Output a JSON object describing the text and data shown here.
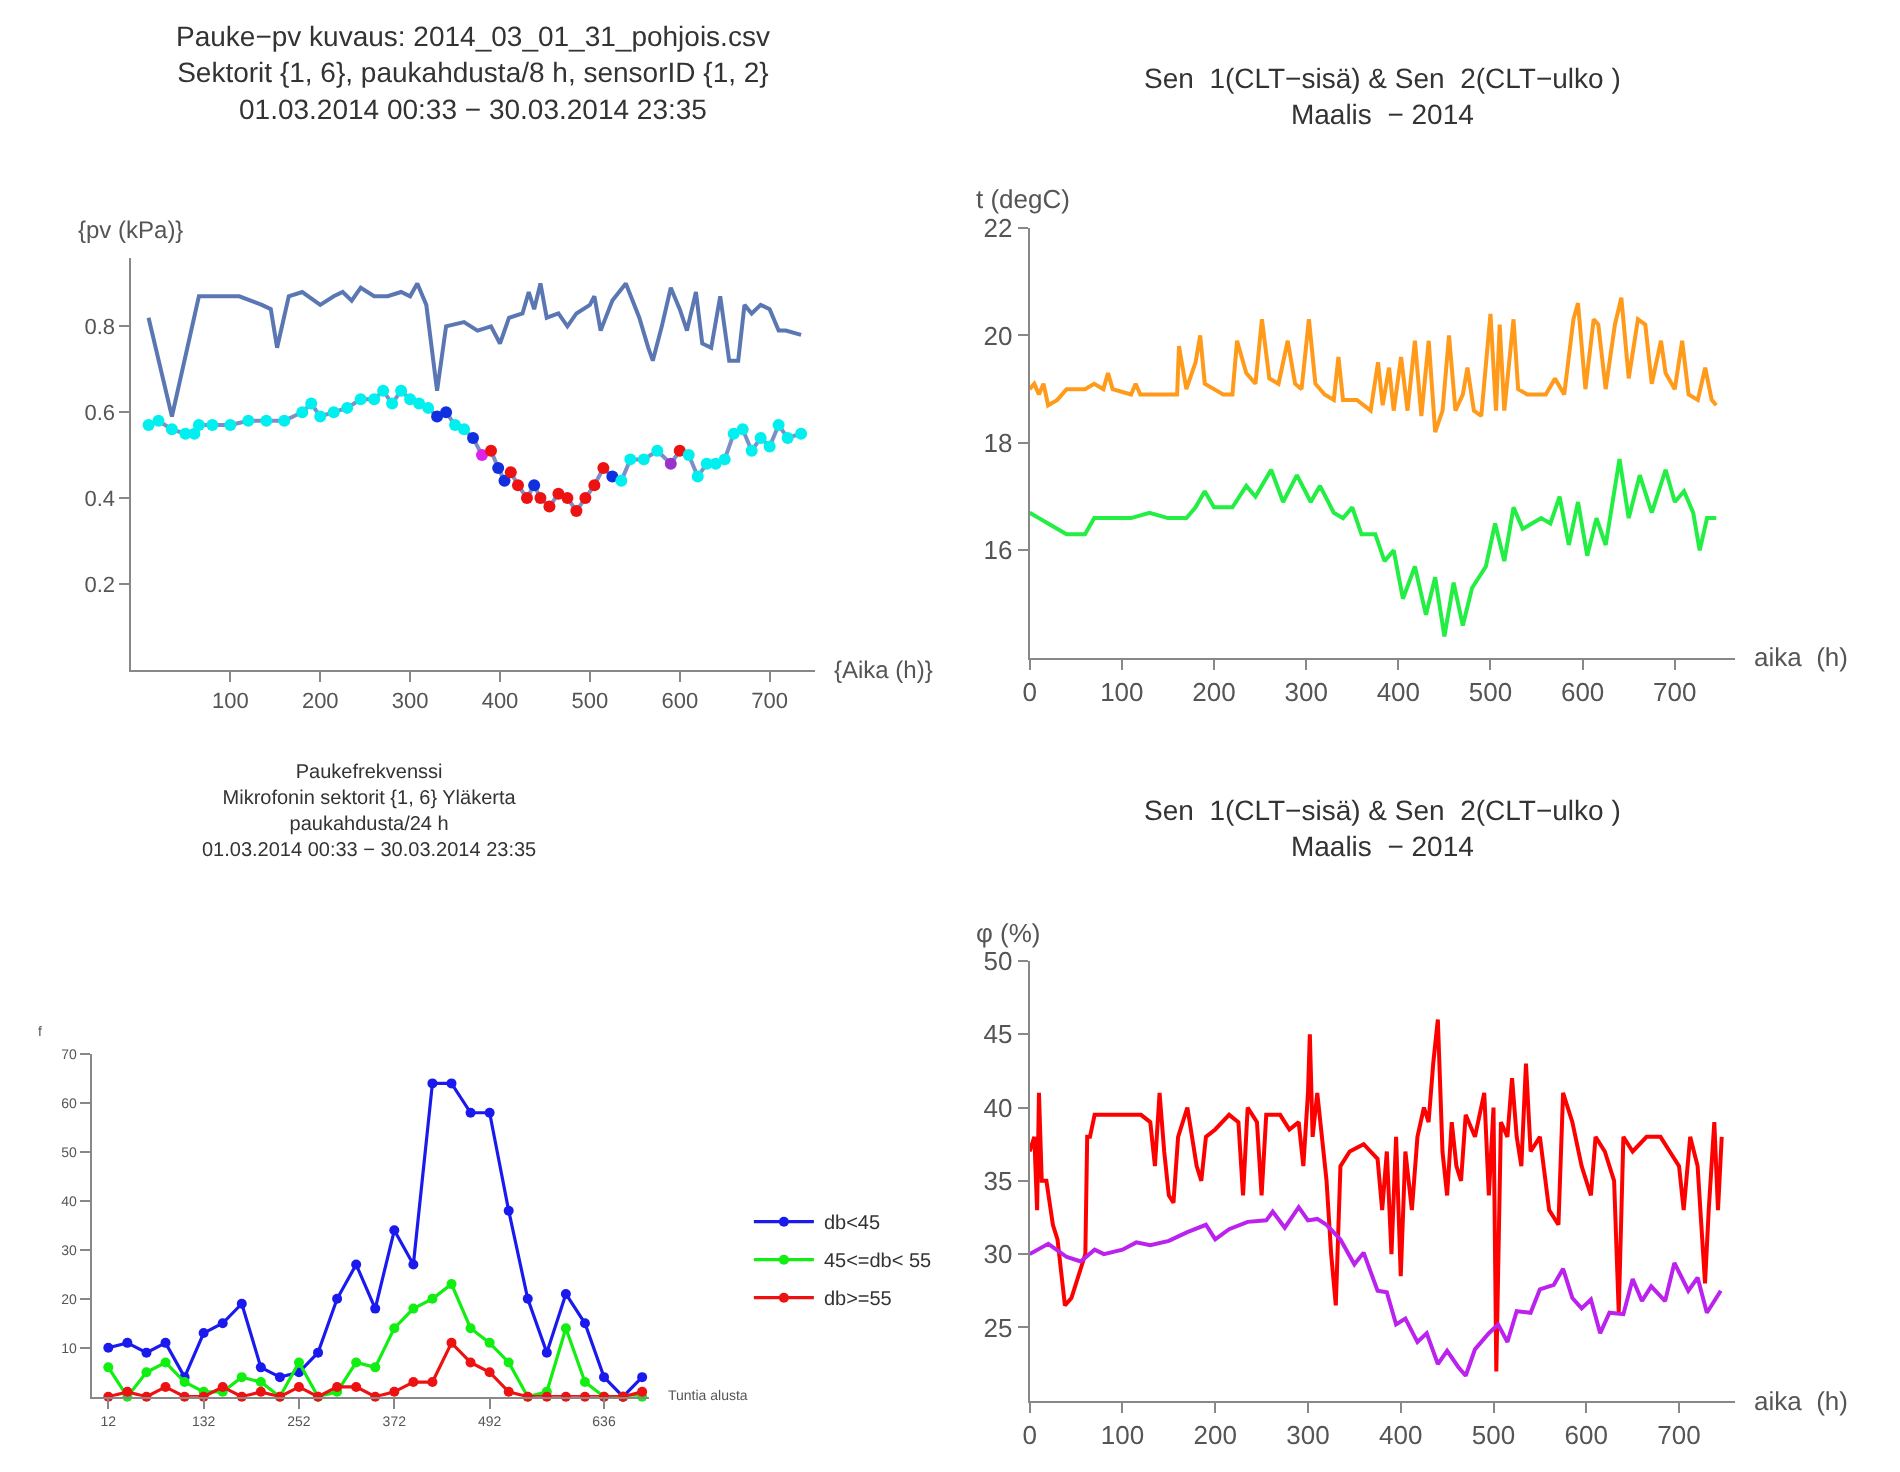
{
  "chart_data": [
    {
      "type": "line",
      "title": "Pauke−pv kuvaus: 2014_03_01_31_pohjois.csv\nSektorit {1, 6}, paukahdusta/8 h, sensorID {1, 2}\n01.03.2014 00:33 − 30.03.2014 23:35",
      "ylabel": "{pv (kPa)}",
      "xlabel": "{Aika (h)}",
      "xlim": [
        -10,
        750
      ],
      "ylim": [
        0,
        0.96
      ],
      "xticks": [
        100,
        200,
        300,
        400,
        500,
        600,
        700
      ],
      "yticks": [
        0.2,
        0.4,
        0.6,
        0.8
      ],
      "tick_labels": true,
      "series": [
        {
          "color": "#5b77b3",
          "marker": "none",
          "x": [
            9,
            35,
            65,
            110,
            135,
            145,
            152,
            165,
            180,
            200,
            215,
            225,
            235,
            245,
            260,
            275,
            290,
            300,
            308,
            318,
            330,
            340,
            360,
            375,
            390,
            400,
            410,
            425,
            432,
            438,
            445,
            452,
            465,
            475,
            485,
            500,
            505,
            512,
            525,
            540,
            555,
            565,
            570,
            580,
            590,
            600,
            608,
            618,
            625,
            635,
            645,
            655,
            665,
            672,
            680,
            690,
            700,
            710,
            718,
            735
          ],
          "values": [
            0.82,
            0.59,
            0.87,
            0.87,
            0.85,
            0.84,
            0.75,
            0.87,
            0.88,
            0.85,
            0.87,
            0.88,
            0.86,
            0.89,
            0.87,
            0.87,
            0.88,
            0.87,
            0.9,
            0.85,
            0.65,
            0.8,
            0.81,
            0.79,
            0.8,
            0.76,
            0.82,
            0.83,
            0.88,
            0.84,
            0.9,
            0.82,
            0.83,
            0.8,
            0.83,
            0.85,
            0.87,
            0.79,
            0.86,
            0.9,
            0.82,
            0.75,
            0.72,
            0.8,
            0.89,
            0.84,
            0.79,
            0.88,
            0.76,
            0.75,
            0.87,
            0.72,
            0.72,
            0.85,
            0.83,
            0.85,
            0.84,
            0.79,
            0.79,
            0.78
          ]
        },
        {
          "color": "#7d8fc4",
          "marker": "circle",
          "x": [
            9,
            20,
            35,
            50,
            60,
            65,
            80,
            100,
            120,
            140,
            160,
            180,
            190,
            200,
            215,
            230,
            245,
            260,
            270,
            280,
            290,
            300,
            310,
            320,
            330,
            340,
            350,
            360,
            370,
            380,
            390,
            398,
            405,
            412,
            420,
            430,
            438,
            445,
            455,
            465,
            475,
            485,
            495,
            505,
            515,
            525,
            535,
            545,
            560,
            575,
            590,
            600,
            610,
            620,
            630,
            640,
            650,
            660,
            670,
            680,
            690,
            700,
            710,
            720,
            735
          ],
          "values": [
            0.57,
            0.58,
            0.56,
            0.55,
            0.55,
            0.57,
            0.57,
            0.57,
            0.58,
            0.58,
            0.58,
            0.6,
            0.62,
            0.59,
            0.6,
            0.61,
            0.63,
            0.63,
            0.65,
            0.62,
            0.65,
            0.63,
            0.62,
            0.61,
            0.59,
            0.6,
            0.57,
            0.56,
            0.54,
            0.5,
            0.51,
            0.47,
            0.44,
            0.46,
            0.43,
            0.4,
            0.43,
            0.4,
            0.38,
            0.41,
            0.4,
            0.37,
            0.4,
            0.43,
            0.47,
            0.45,
            0.44,
            0.49,
            0.49,
            0.51,
            0.48,
            0.51,
            0.5,
            0.45,
            0.48,
            0.48,
            0.49,
            0.55,
            0.56,
            0.51,
            0.54,
            0.52,
            0.57,
            0.54,
            0.55
          ],
          "colors": [
            "#00f0f0",
            "#00f0f0",
            "#00f0f0",
            "#00f0f0",
            "#00f0f0",
            "#00f0f0",
            "#00f0f0",
            "#00f0f0",
            "#00f0f0",
            "#00f0f0",
            "#00f0f0",
            "#00f0f0",
            "#00f0f0",
            "#00f0f0",
            "#00f0f0",
            "#00f0f0",
            "#00f0f0",
            "#00f0f0",
            "#00f0f0",
            "#00f0f0",
            "#00f0f0",
            "#00f0f0",
            "#00f0f0",
            "#00f0f0",
            "#1030e0",
            "#1030e0",
            "#00f0f0",
            "#00f0f0",
            "#1030e0",
            "#dd22ee",
            "#ee1111",
            "#1030e0",
            "#1030e0",
            "#ee1111",
            "#ee1111",
            "#ee1111",
            "#1030e0",
            "#ee1111",
            "#ee1111",
            "#ee1111",
            "#ee1111",
            "#ee1111",
            "#ee1111",
            "#ee1111",
            "#ee1111",
            "#1030e0",
            "#00f0f0",
            "#00f0f0",
            "#00f0f0",
            "#00f0f0",
            "#9933cc",
            "#ee1111",
            "#00f0f0",
            "#00f0f0",
            "#00f0f0",
            "#00f0f0",
            "#00f0f0",
            "#00f0f0",
            "#00f0f0",
            "#00f0f0",
            "#00f0f0",
            "#00f0f0",
            "#00f0f0",
            "#00f0f0",
            "#00f0f0"
          ]
        }
      ]
    },
    {
      "type": "line",
      "title": "Sen  1(CLT−sisä) & Sen  2(CLT−ulko )\nMaalis  − 2014",
      "ylabel": "t (degC)",
      "xlabel": "aika  (h)",
      "xlim": [
        0,
        765
      ],
      "ylim": [
        14,
        22
      ],
      "xticks": [
        0,
        100,
        200,
        300,
        400,
        500,
        600,
        700
      ],
      "yticks": [
        16,
        18,
        20,
        22
      ],
      "series": [
        {
          "color": "#ff9a1a",
          "marker": "none",
          "x": [
            0,
            5,
            10,
            15,
            20,
            30,
            40,
            60,
            70,
            80,
            85,
            90,
            110,
            115,
            120,
            150,
            160,
            162,
            170,
            180,
            185,
            190,
            200,
            210,
            220,
            225,
            235,
            245,
            252,
            260,
            270,
            280,
            288,
            295,
            303,
            310,
            320,
            330,
            335,
            340,
            355,
            370,
            378,
            383,
            390,
            395,
            403,
            410,
            418,
            425,
            433,
            440,
            448,
            455,
            462,
            470,
            475,
            482,
            490,
            500,
            506,
            510,
            515,
            525,
            530,
            540,
            550,
            560,
            570,
            580,
            590,
            595,
            603,
            612,
            617,
            625,
            635,
            642,
            650,
            660,
            668,
            675,
            685,
            690,
            700,
            708,
            715,
            725,
            733,
            740,
            745
          ],
          "values": [
            19.0,
            19.1,
            18.9,
            19.1,
            18.7,
            18.8,
            19.0,
            19.0,
            19.1,
            19.0,
            19.3,
            19.0,
            18.9,
            19.1,
            18.9,
            18.9,
            18.9,
            19.8,
            19.0,
            19.5,
            20.0,
            19.1,
            19.0,
            18.9,
            18.9,
            19.9,
            19.3,
            19.1,
            20.3,
            19.2,
            19.1,
            19.9,
            19.1,
            19.0,
            20.3,
            19.1,
            18.9,
            18.8,
            19.6,
            18.8,
            18.8,
            18.6,
            19.5,
            18.7,
            19.4,
            18.6,
            19.6,
            18.6,
            19.9,
            18.5,
            19.9,
            18.2,
            18.6,
            20.0,
            18.6,
            18.9,
            19.4,
            18.6,
            18.5,
            20.4,
            18.6,
            20.2,
            18.6,
            20.3,
            19.0,
            18.9,
            18.9,
            18.9,
            19.2,
            18.9,
            20.3,
            20.6,
            19.0,
            20.3,
            20.2,
            19.0,
            20.2,
            20.7,
            19.2,
            20.3,
            20.2,
            19.1,
            19.9,
            19.3,
            19.0,
            19.9,
            18.9,
            18.8,
            19.4,
            18.8,
            18.7
          ]
        },
        {
          "color": "#22ee44",
          "marker": "none",
          "x": [
            0,
            10,
            20,
            40,
            60,
            70,
            90,
            110,
            130,
            150,
            170,
            180,
            190,
            200,
            220,
            235,
            245,
            262,
            275,
            290,
            305,
            315,
            330,
            340,
            350,
            360,
            375,
            385,
            395,
            405,
            418,
            430,
            440,
            450,
            460,
            470,
            480,
            495,
            505,
            515,
            525,
            535,
            545,
            555,
            565,
            575,
            585,
            595,
            605,
            615,
            625,
            640,
            650,
            662,
            675,
            690,
            700,
            710,
            720,
            727,
            735,
            745
          ],
          "values": [
            16.7,
            16.6,
            16.5,
            16.3,
            16.3,
            16.6,
            16.6,
            16.6,
            16.7,
            16.6,
            16.6,
            16.8,
            17.1,
            16.8,
            16.8,
            17.2,
            17.0,
            17.5,
            16.9,
            17.4,
            16.9,
            17.2,
            16.7,
            16.6,
            16.8,
            16.3,
            16.3,
            15.8,
            16.0,
            15.1,
            15.7,
            14.8,
            15.5,
            14.4,
            15.4,
            14.6,
            15.3,
            15.7,
            16.5,
            15.8,
            16.8,
            16.4,
            16.5,
            16.6,
            16.5,
            17.0,
            16.1,
            16.9,
            15.9,
            16.6,
            16.1,
            17.7,
            16.6,
            17.4,
            16.7,
            17.5,
            16.9,
            17.1,
            16.7,
            16.0,
            16.6,
            16.6
          ]
        }
      ]
    },
    {
      "type": "line",
      "title": "Paukefrekvenssi\nMikrofonin sektorit {1, 6} Yläkerta\npaukahdusta/24 h\n01.03.2014 00:33 − 30.03.2014 23:35",
      "ylabel": "f",
      "xlabel": "Tuntia alusta",
      "xlim": [
        -9,
        693
      ],
      "ylim": [
        0,
        70
      ],
      "xticks": [
        12,
        132,
        252,
        372,
        492,
        636
      ],
      "yticks": [
        10,
        20,
        30,
        40,
        50,
        60,
        70
      ],
      "legend": "right",
      "x": [
        12,
        36,
        60,
        84,
        108,
        132,
        156,
        180,
        204,
        228,
        252,
        276,
        300,
        324,
        348,
        372,
        396,
        420,
        444,
        468,
        492,
        516,
        540,
        564,
        588,
        612,
        636,
        660,
        684
      ],
      "series": [
        {
          "name": "db<45",
          "color": "#1a1aee",
          "marker": "circle",
          "values": [
            10,
            11,
            9,
            11,
            4,
            13,
            15,
            19,
            6,
            4,
            5,
            9,
            20,
            27,
            18,
            34,
            27,
            64,
            64,
            58,
            58,
            38,
            20,
            9,
            21,
            15,
            4,
            0,
            4
          ]
        },
        {
          "name": "45<=db< 55",
          "color": "#11ee11",
          "marker": "circle",
          "values": [
            6,
            0,
            5,
            7,
            3,
            1,
            1,
            4,
            3,
            0,
            7,
            0,
            1,
            7,
            6,
            14,
            18,
            20,
            23,
            14,
            11,
            7,
            0,
            1,
            14,
            3,
            0,
            0,
            0
          ]
        },
        {
          "name": "db>=55",
          "color": "#ee1111",
          "marker": "circle",
          "values": [
            0,
            1,
            0,
            2,
            0,
            0,
            2,
            0,
            1,
            0,
            2,
            0,
            2,
            2,
            0,
            1,
            3,
            3,
            11,
            7,
            5,
            1,
            0,
            0,
            0,
            0,
            0,
            0,
            1
          ]
        }
      ]
    },
    {
      "type": "line",
      "title": "Sen  1(CLT−sisä) & Sen  2(CLT−ulko )\nMaalis  − 2014",
      "ylabel": "φ (%)",
      "xlabel": "aika  (h)",
      "xlim": [
        0,
        760
      ],
      "ylim": [
        20,
        50
      ],
      "xticks": [
        0,
        100,
        200,
        300,
        400,
        500,
        600,
        700
      ],
      "yticks": [
        25,
        30,
        35,
        40,
        45,
        50
      ],
      "series": [
        {
          "color": "#ff0000",
          "marker": "none",
          "x": [
            0,
            5,
            8,
            10,
            13,
            18,
            25,
            30,
            38,
            45,
            55,
            60,
            62,
            65,
            70,
            90,
            100,
            120,
            130,
            135,
            140,
            145,
            150,
            155,
            160,
            170,
            180,
            185,
            190,
            200,
            215,
            225,
            230,
            235,
            245,
            250,
            255,
            270,
            280,
            290,
            295,
            300,
            302,
            305,
            310,
            315,
            320,
            325,
            330,
            335,
            345,
            360,
            375,
            380,
            385,
            390,
            395,
            400,
            405,
            412,
            418,
            425,
            430,
            435,
            440,
            445,
            450,
            455,
            460,
            465,
            470,
            480,
            490,
            495,
            500,
            503,
            508,
            515,
            520,
            525,
            530,
            535,
            540,
            550,
            560,
            570,
            575,
            585,
            595,
            605,
            610,
            620,
            630,
            635,
            640,
            650,
            665,
            680,
            690,
            700,
            705,
            712,
            720,
            728,
            732,
            738,
            742,
            746
          ],
          "values": [
            37,
            38,
            33,
            41,
            35,
            35,
            32,
            31,
            26.5,
            27,
            29,
            30,
            38,
            38,
            39.5,
            39.5,
            39.5,
            39.5,
            39,
            36,
            41,
            37,
            34,
            33.5,
            38,
            40,
            36,
            35,
            38,
            38.5,
            39.5,
            39,
            34,
            40,
            39,
            34,
            39.5,
            39.5,
            38.5,
            39,
            36,
            41,
            45,
            38,
            41,
            38,
            35,
            30,
            26.5,
            36,
            37,
            37.5,
            36.5,
            33,
            37,
            30,
            38,
            28.5,
            37,
            33,
            38,
            40,
            39,
            43,
            46,
            37,
            34,
            39,
            36,
            35,
            39.5,
            38,
            41,
            34,
            40,
            22,
            39,
            38,
            42,
            38,
            36,
            43,
            37,
            38,
            33,
            32,
            41,
            39,
            36,
            34,
            38,
            37,
            35,
            26,
            38,
            37,
            38,
            38,
            37,
            36,
            33,
            38,
            36,
            28,
            33,
            39,
            33,
            38
          ]
        },
        {
          "color": "#bb22ee",
          "marker": "none",
          "x": [
            0,
            20,
            40,
            55,
            70,
            80,
            100,
            115,
            130,
            150,
            170,
            190,
            200,
            215,
            235,
            255,
            262,
            275,
            290,
            300,
            310,
            320,
            335,
            350,
            360,
            375,
            385,
            395,
            405,
            418,
            428,
            440,
            450,
            462,
            470,
            480,
            495,
            505,
            515,
            525,
            540,
            550,
            565,
            575,
            585,
            595,
            605,
            615,
            625,
            640,
            650,
            660,
            670,
            685,
            695,
            710,
            720,
            730,
            745
          ],
          "values": [
            30,
            30.7,
            29.8,
            29.5,
            30.3,
            30.0,
            30.3,
            30.8,
            30.6,
            30.9,
            31.5,
            32.0,
            31.0,
            31.7,
            32.2,
            32.3,
            32.9,
            31.8,
            33.2,
            32.3,
            32.4,
            32.0,
            31.0,
            29.3,
            30.1,
            27.5,
            27.4,
            25.2,
            25.6,
            24.0,
            24.6,
            22.5,
            23.4,
            22.3,
            21.7,
            23.5,
            24.6,
            25.2,
            24.0,
            26.1,
            26.0,
            27.6,
            27.9,
            29.0,
            27.0,
            26.3,
            26.9,
            24.6,
            26.0,
            25.9,
            28.3,
            26.8,
            27.8,
            26.8,
            29.4,
            27.5,
            28.4,
            26.0,
            27.5
          ]
        }
      ]
    }
  ]
}
